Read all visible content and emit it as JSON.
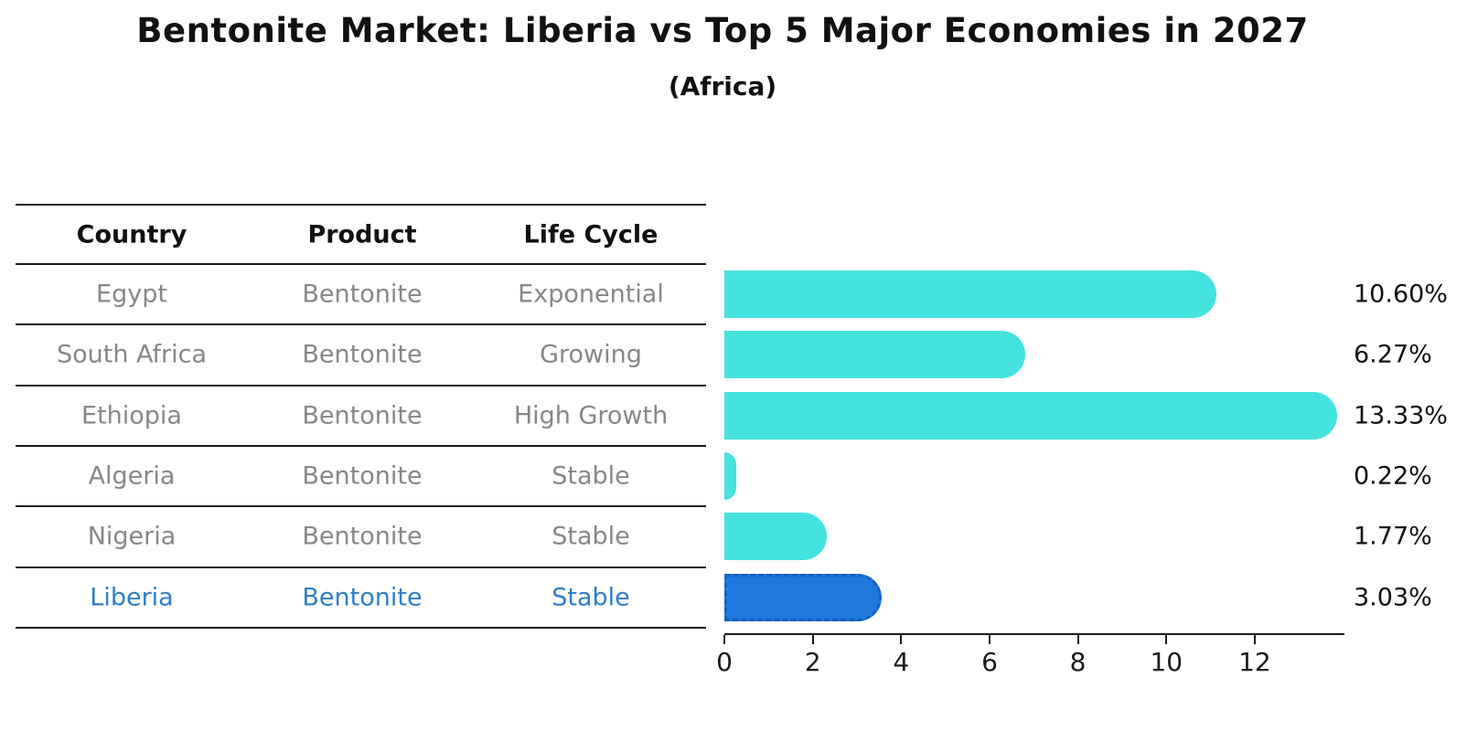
{
  "title": "Bentonite Market: Liberia vs Top 5 Major Economies in 2027",
  "subtitle": "(Africa)",
  "table": {
    "headers": [
      "Country",
      "Product",
      "Life Cycle"
    ],
    "rows": [
      {
        "country": "Egypt",
        "product": "Bentonite",
        "life_cycle": "Exponential",
        "highlight": false
      },
      {
        "country": "South Africa",
        "product": "Bentonite",
        "life_cycle": "Growing",
        "highlight": false
      },
      {
        "country": "Ethiopia",
        "product": "Bentonite",
        "life_cycle": "High Growth",
        "highlight": false
      },
      {
        "country": "Algeria",
        "product": "Bentonite",
        "life_cycle": "Stable",
        "highlight": false
      },
      {
        "country": "Nigeria",
        "product": "Bentonite",
        "life_cycle": "Stable",
        "highlight": false
      },
      {
        "country": "Liberia",
        "product": "Bentonite",
        "life_cycle": "Stable",
        "highlight": true
      }
    ]
  },
  "chart_data": {
    "type": "bar",
    "orientation": "horizontal",
    "title": "Bentonite Market: Liberia vs Top 5 Major Economies in 2027",
    "subtitle": "(Africa)",
    "categories": [
      "Egypt",
      "South Africa",
      "Ethiopia",
      "Algeria",
      "Nigeria",
      "Liberia"
    ],
    "values": [
      10.6,
      6.27,
      13.33,
      0.22,
      1.77,
      3.03
    ],
    "value_labels": [
      "10.60%",
      "6.27%",
      "13.33%",
      "0.22%",
      "1.77%",
      "3.03%"
    ],
    "unit": "percent",
    "x_ticks": [
      "0",
      "2",
      "4",
      "6",
      "8",
      "10",
      "12"
    ],
    "x_tick_values": [
      0,
      2,
      4,
      6,
      8,
      10,
      12
    ],
    "xlim": [
      0,
      14.03
    ],
    "highlight_index": 5,
    "grid": false,
    "legend": false
  },
  "colors": {
    "bar": "#45E3DF",
    "highlight_bar": "#1E78DE",
    "highlight_border": "#1560BE",
    "highlight_text": "#2E7EC8",
    "row_text": "#878787",
    "heading_text": "#111111",
    "axis": "#1a1a1a"
  }
}
